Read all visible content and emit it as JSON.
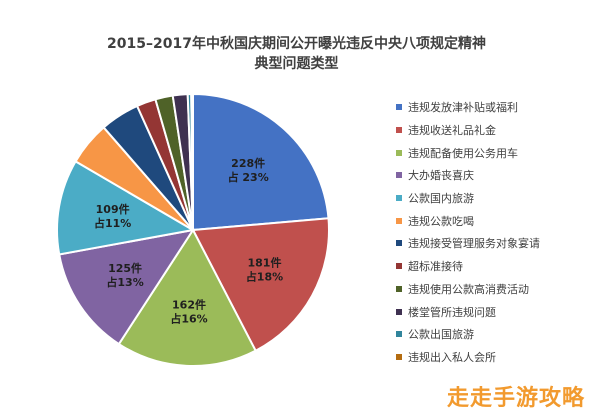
{
  "chart_data": {
    "type": "pie",
    "title": "2015–2017年中秋国庆期间公开曝光违反中央八项规定精神",
    "subtitle": "典型问题类型",
    "categories": [
      "违规发放津补贴或福利",
      "违规收送礼品礼金",
      "违规配备使用公务用车",
      "大办婚丧喜庆",
      "公款国内旅游",
      "违规公款吃喝",
      "违规接受管理服务对象宴请",
      "超标准接待",
      "违规使用公款高消费活动",
      "楼堂管所违规问题",
      "公款出国旅游",
      "违规出入私人会所"
    ],
    "values": [
      228,
      181,
      162,
      125,
      109,
      50,
      45,
      22,
      20,
      17,
      4,
      2
    ],
    "colors": [
      "#4472c4",
      "#c0504d",
      "#9bbb59",
      "#8064a2",
      "#4bacc6",
      "#f79646",
      "#1f497d",
      "#943634",
      "#4f6228",
      "#3f3151",
      "#31859c",
      "#b46c10"
    ],
    "data_labels": [
      {
        "count": "228件",
        "pct": "占 23%"
      },
      {
        "count": "181件",
        "pct": "占18%"
      },
      {
        "count": "162件",
        "pct": "占16%"
      },
      {
        "count": "125件",
        "pct": "占13%"
      },
      {
        "count": "109件",
        "pct": "占11%"
      }
    ],
    "legend_position": "right"
  },
  "watermark": "走走手游攻略"
}
